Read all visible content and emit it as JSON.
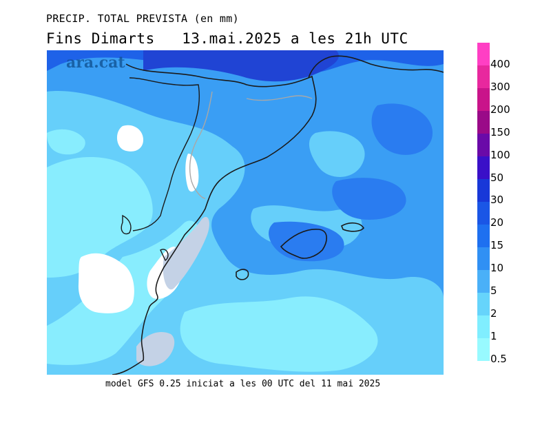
{
  "header": {
    "title_line1": "PRECIP. TOTAL PREVISTA (en mm)",
    "title_line2": "Fins Dimarts   13.mai.2025 a les 21h UTC"
  },
  "watermark": "ara.cat",
  "footer": "model GFS 0.25 iniciat a les 00 UTC del 11 mai 2025",
  "legend": {
    "labels": [
      "400",
      "300",
      "200",
      "150",
      "100",
      "50",
      "30",
      "20",
      "15",
      "10",
      "5",
      "2",
      "1",
      "0.5"
    ],
    "colors": [
      "#ff3fc4",
      "#e8289e",
      "#c9148a",
      "#9a0a88",
      "#6a0aa8",
      "#3a10c8",
      "#1838d8",
      "#1a56e6",
      "#1e70f0",
      "#3090f4",
      "#4ab0f8",
      "#66d4fb",
      "#80eeff",
      "#98faff"
    ]
  },
  "map_colors": {
    "base": "#3a9ef4",
    "light": "#66cffa",
    "lighter": "#88edfe",
    "dark": "#1e62e8",
    "darker": "#2044d4",
    "dry": "#ffffff",
    "sea_dry": "#c4d2e6",
    "coast": "#1a1a1a",
    "border": "#a8a8a8"
  }
}
